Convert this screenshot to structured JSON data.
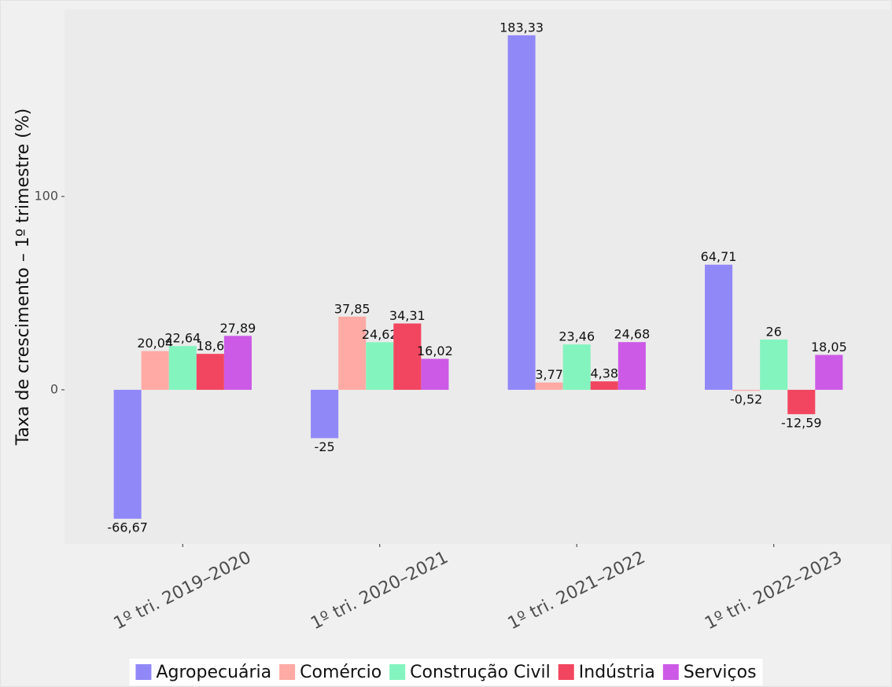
{
  "chart_data": {
    "type": "bar",
    "y_label": "Taxa de crescimento – 1º trimestre (%)",
    "categories": [
      "1º tri. 2019–2020",
      "1º tri. 2020–2021",
      "1º tri. 2021–2022",
      "1º tri. 2022–2023"
    ],
    "series": [
      {
        "name": "Agropecuária",
        "color": "#9188f8",
        "values": [
          -66.67,
          -25,
          183.33,
          64.71
        ],
        "value_labels": [
          "-66,67",
          "-25",
          "183,33",
          "64,71"
        ]
      },
      {
        "name": "Comércio",
        "color": "#ffaaa5",
        "values": [
          20.04,
          37.85,
          3.77,
          -0.52
        ],
        "value_labels": [
          "20,04",
          "37,85",
          "3,77",
          "-0,52"
        ]
      },
      {
        "name": "Construção Civil",
        "color": "#84f4bf",
        "values": [
          22.64,
          24.62,
          23.46,
          26
        ],
        "value_labels": [
          "22,64",
          "24,62",
          "23,46",
          "26"
        ]
      },
      {
        "name": "Indústria",
        "color": "#f24660",
        "values": [
          18.6,
          34.31,
          4.38,
          -12.59
        ],
        "value_labels": [
          "18,6",
          "34,31",
          "4,38",
          "-12,59"
        ]
      },
      {
        "name": "Serviços",
        "color": "#cc5ae6",
        "values": [
          27.89,
          16.02,
          24.68,
          18.05
        ],
        "value_labels": [
          "27,89",
          "16,02",
          "24,68",
          "18,05"
        ]
      }
    ],
    "ylim": [
      -79.7,
      196.7
    ],
    "yticks": [
      0,
      100
    ],
    "grid": false,
    "legend": "bottom"
  }
}
